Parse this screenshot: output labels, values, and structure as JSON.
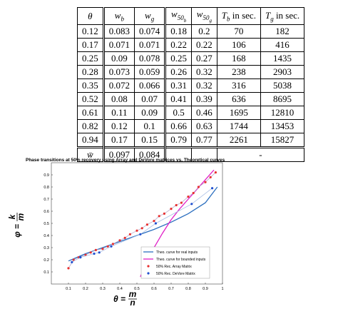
{
  "table": {
    "headers": [
      {
        "main": "θ"
      },
      {
        "main": "w",
        "sub": "b"
      },
      {
        "main": "w",
        "sub": "g"
      },
      {
        "main": "w",
        "sub": "50",
        "subsub": "b"
      },
      {
        "main": "w",
        "sub": "50",
        "subsub": "g"
      },
      {
        "main": "T",
        "sub": "b",
        "rest": " in sec."
      },
      {
        "main": "T",
        "sub": "g",
        "rest": " in sec."
      }
    ],
    "rows": [
      [
        "0.12",
        "0.083",
        "0.074",
        "0.18",
        "0.2",
        "70",
        "182"
      ],
      [
        "0.17",
        "0.071",
        "0.071",
        "0.22",
        "0.22",
        "106",
        "416"
      ],
      [
        "0.25",
        "0.09",
        "0.078",
        "0.25",
        "0.27",
        "168",
        "1435"
      ],
      [
        "0.28",
        "0.073",
        "0.059",
        "0.26",
        "0.32",
        "238",
        "2903"
      ],
      [
        "0.35",
        "0.072",
        "0.066",
        "0.31",
        "0.32",
        "316",
        "5038"
      ],
      [
        "0.52",
        "0.08",
        "0.07",
        "0.41",
        "0.39",
        "636",
        "8695"
      ],
      [
        "0.61",
        "0.11",
        "0.09",
        "0.5",
        "0.46",
        "1695",
        "12810"
      ],
      [
        "0.82",
        "0.12",
        "0.1",
        "0.66",
        "0.63",
        "1744",
        "13453"
      ],
      [
        "0.94",
        "0.17",
        "0.15",
        "0.79",
        "0.77",
        "2261",
        "15827"
      ]
    ],
    "footer": {
      "label": "w̄",
      "w_b": "0.097",
      "w_g": "0.084",
      "T": "-"
    }
  },
  "chart_data": {
    "type": "line",
    "title": "Phase transitions at 50% recovery using Array and DeVore matrices vs. Theoretical curves",
    "xlabel": {
      "lhs": "θ =",
      "num": "m",
      "den": "n"
    },
    "ylabel": {
      "lhs": "φ =",
      "num": "k",
      "den": "m"
    },
    "xlim": [
      0,
      1
    ],
    "ylim": [
      0,
      1
    ],
    "xticks": [
      0.1,
      0.2,
      0.3,
      0.4,
      0.5,
      0.6,
      0.7,
      0.8,
      0.9,
      1
    ],
    "yticks": [
      0.1,
      0.2,
      0.3,
      0.4,
      0.5,
      0.6,
      0.7,
      0.8,
      0.9
    ],
    "legend": "lower-right",
    "series": [
      {
        "name": "Theo. curve for real inputs",
        "color": "#2c6fbf",
        "marker": "none",
        "x": [
          0.1,
          0.2,
          0.3,
          0.4,
          0.5,
          0.6,
          0.7,
          0.8,
          0.9,
          0.97
        ],
        "values": [
          0.19,
          0.25,
          0.3,
          0.35,
          0.4,
          0.45,
          0.51,
          0.58,
          0.67,
          0.8
        ]
      },
      {
        "name": "Theo. curve for bounded inputs",
        "color": "#e020c8",
        "marker": "none",
        "x": [
          0.52,
          0.55,
          0.6,
          0.65,
          0.7,
          0.75,
          0.8,
          0.85,
          0.9,
          0.95
        ],
        "values": [
          0.06,
          0.15,
          0.3,
          0.42,
          0.53,
          0.62,
          0.7,
          0.78,
          0.86,
          0.94
        ]
      },
      {
        "name": "50% Rec. Array Matrix",
        "color": "#e83030",
        "marker": "dot",
        "line_color": "#b9a9c9",
        "x": [
          0.1,
          0.13,
          0.16,
          0.2,
          0.23,
          0.26,
          0.3,
          0.33,
          0.36,
          0.4,
          0.43,
          0.46,
          0.5,
          0.53,
          0.56,
          0.6,
          0.63,
          0.66,
          0.7,
          0.73,
          0.76,
          0.8,
          0.83,
          0.86,
          0.9,
          0.93,
          0.96
        ],
        "values": [
          0.13,
          0.2,
          0.22,
          0.24,
          0.26,
          0.28,
          0.29,
          0.31,
          0.33,
          0.36,
          0.38,
          0.41,
          0.44,
          0.46,
          0.49,
          0.52,
          0.56,
          0.58,
          0.62,
          0.65,
          0.67,
          0.72,
          0.75,
          0.8,
          0.84,
          0.88,
          0.92
        ]
      },
      {
        "name": "50% Rec. DeVore Matrix",
        "color": "#2050d0",
        "marker": "dot",
        "line_color": "#a9bfe6",
        "x": [
          0.12,
          0.17,
          0.25,
          0.28,
          0.35,
          0.52,
          0.61,
          0.82,
          0.94
        ],
        "values": [
          0.18,
          0.22,
          0.25,
          0.26,
          0.31,
          0.41,
          0.5,
          0.66,
          0.79
        ]
      }
    ]
  }
}
